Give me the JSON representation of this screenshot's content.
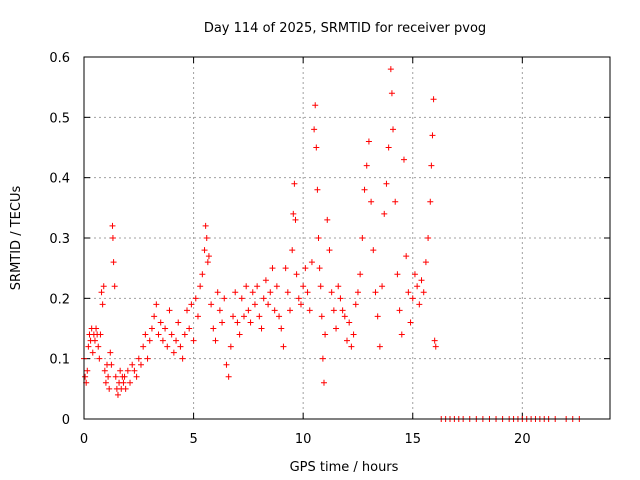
{
  "chart_data": {
    "type": "scatter",
    "title": "Day 114 of 2025, SRMTID for receiver pvog",
    "xlabel": "GPS time / hours",
    "ylabel": "SRMTID / TECUs",
    "xlim": [
      0,
      24
    ],
    "ylim": [
      0,
      0.6
    ],
    "xticks": [
      0,
      5,
      10,
      15,
      20
    ],
    "yticks": [
      0,
      0.1,
      0.2,
      0.3,
      0.4,
      0.5,
      0.6
    ],
    "xtick_labels": [
      "0",
      "5",
      "10",
      "15",
      "20"
    ],
    "ytick_labels": [
      "0",
      "0.1",
      "0.2",
      "0.3",
      "0.4",
      "0.5",
      "0.6"
    ],
    "grid": true,
    "marker": "+",
    "color": "#ff0000",
    "series": [
      {
        "name": "SRMTID",
        "points": [
          [
            0.0,
            0.1
          ],
          [
            0.05,
            0.07
          ],
          [
            0.1,
            0.06
          ],
          [
            0.15,
            0.08
          ],
          [
            0.2,
            0.12
          ],
          [
            0.25,
            0.14
          ],
          [
            0.3,
            0.13
          ],
          [
            0.35,
            0.15
          ],
          [
            0.4,
            0.11
          ],
          [
            0.45,
            0.14
          ],
          [
            0.5,
            0.13
          ],
          [
            0.55,
            0.15
          ],
          [
            0.6,
            0.14
          ],
          [
            0.65,
            0.12
          ],
          [
            0.7,
            0.1
          ],
          [
            0.75,
            0.14
          ],
          [
            0.8,
            0.21
          ],
          [
            0.85,
            0.19
          ],
          [
            0.9,
            0.22
          ],
          [
            0.95,
            0.08
          ],
          [
            1.0,
            0.06
          ],
          [
            1.05,
            0.09
          ],
          [
            1.1,
            0.07
          ],
          [
            1.15,
            0.05
          ],
          [
            1.2,
            0.11
          ],
          [
            1.25,
            0.09
          ],
          [
            1.3,
            0.32
          ],
          [
            1.32,
            0.3
          ],
          [
            1.35,
            0.26
          ],
          [
            1.4,
            0.22
          ],
          [
            1.45,
            0.07
          ],
          [
            1.5,
            0.05
          ],
          [
            1.55,
            0.04
          ],
          [
            1.6,
            0.06
          ],
          [
            1.65,
            0.08
          ],
          [
            1.7,
            0.05
          ],
          [
            1.75,
            0.07
          ],
          [
            1.8,
            0.06
          ],
          [
            1.85,
            0.07
          ],
          [
            1.9,
            0.05
          ],
          [
            2.0,
            0.08
          ],
          [
            2.1,
            0.06
          ],
          [
            2.2,
            0.09
          ],
          [
            2.3,
            0.08
          ],
          [
            2.4,
            0.07
          ],
          [
            2.5,
            0.1
          ],
          [
            2.6,
            0.09
          ],
          [
            2.7,
            0.12
          ],
          [
            2.8,
            0.14
          ],
          [
            2.9,
            0.1
          ],
          [
            3.0,
            0.13
          ],
          [
            3.1,
            0.15
          ],
          [
            3.2,
            0.17
          ],
          [
            3.3,
            0.19
          ],
          [
            3.4,
            0.14
          ],
          [
            3.5,
            0.16
          ],
          [
            3.6,
            0.13
          ],
          [
            3.7,
            0.15
          ],
          [
            3.8,
            0.12
          ],
          [
            3.9,
            0.18
          ],
          [
            4.0,
            0.14
          ],
          [
            4.1,
            0.11
          ],
          [
            4.2,
            0.13
          ],
          [
            4.3,
            0.16
          ],
          [
            4.4,
            0.12
          ],
          [
            4.5,
            0.1
          ],
          [
            4.6,
            0.14
          ],
          [
            4.7,
            0.18
          ],
          [
            4.8,
            0.15
          ],
          [
            4.9,
            0.19
          ],
          [
            5.0,
            0.13
          ],
          [
            5.1,
            0.2
          ],
          [
            5.2,
            0.17
          ],
          [
            5.3,
            0.22
          ],
          [
            5.4,
            0.24
          ],
          [
            5.5,
            0.28
          ],
          [
            5.55,
            0.32
          ],
          [
            5.6,
            0.3
          ],
          [
            5.65,
            0.26
          ],
          [
            5.7,
            0.27
          ],
          [
            5.8,
            0.19
          ],
          [
            5.9,
            0.15
          ],
          [
            6.0,
            0.13
          ],
          [
            6.1,
            0.21
          ],
          [
            6.2,
            0.18
          ],
          [
            6.3,
            0.16
          ],
          [
            6.4,
            0.2
          ],
          [
            6.5,
            0.09
          ],
          [
            6.6,
            0.07
          ],
          [
            6.7,
            0.12
          ],
          [
            6.8,
            0.17
          ],
          [
            6.9,
            0.21
          ],
          [
            7.0,
            0.16
          ],
          [
            7.1,
            0.14
          ],
          [
            7.2,
            0.2
          ],
          [
            7.3,
            0.17
          ],
          [
            7.4,
            0.22
          ],
          [
            7.5,
            0.18
          ],
          [
            7.6,
            0.16
          ],
          [
            7.7,
            0.21
          ],
          [
            7.8,
            0.19
          ],
          [
            7.9,
            0.22
          ],
          [
            8.0,
            0.17
          ],
          [
            8.1,
            0.15
          ],
          [
            8.2,
            0.2
          ],
          [
            8.3,
            0.23
          ],
          [
            8.4,
            0.19
          ],
          [
            8.5,
            0.21
          ],
          [
            8.6,
            0.25
          ],
          [
            8.7,
            0.18
          ],
          [
            8.8,
            0.22
          ],
          [
            8.9,
            0.17
          ],
          [
            9.0,
            0.15
          ],
          [
            9.1,
            0.12
          ],
          [
            9.2,
            0.25
          ],
          [
            9.3,
            0.21
          ],
          [
            9.4,
            0.18
          ],
          [
            9.5,
            0.28
          ],
          [
            9.55,
            0.34
          ],
          [
            9.6,
            0.39
          ],
          [
            9.65,
            0.33
          ],
          [
            9.7,
            0.24
          ],
          [
            9.8,
            0.2
          ],
          [
            9.9,
            0.19
          ],
          [
            10.0,
            0.22
          ],
          [
            10.1,
            0.25
          ],
          [
            10.2,
            0.21
          ],
          [
            10.3,
            0.18
          ],
          [
            10.4,
            0.26
          ],
          [
            10.5,
            0.48
          ],
          [
            10.55,
            0.52
          ],
          [
            10.6,
            0.45
          ],
          [
            10.65,
            0.38
          ],
          [
            10.7,
            0.3
          ],
          [
            10.75,
            0.25
          ],
          [
            10.8,
            0.22
          ],
          [
            10.85,
            0.17
          ],
          [
            10.9,
            0.1
          ],
          [
            10.95,
            0.06
          ],
          [
            11.0,
            0.14
          ],
          [
            11.1,
            0.33
          ],
          [
            11.2,
            0.28
          ],
          [
            11.3,
            0.21
          ],
          [
            11.4,
            0.18
          ],
          [
            11.5,
            0.15
          ],
          [
            11.6,
            0.22
          ],
          [
            11.7,
            0.2
          ],
          [
            11.8,
            0.18
          ],
          [
            11.9,
            0.17
          ],
          [
            12.0,
            0.13
          ],
          [
            12.1,
            0.16
          ],
          [
            12.2,
            0.12
          ],
          [
            12.3,
            0.14
          ],
          [
            12.4,
            0.19
          ],
          [
            12.5,
            0.21
          ],
          [
            12.6,
            0.24
          ],
          [
            12.7,
            0.3
          ],
          [
            12.8,
            0.38
          ],
          [
            12.9,
            0.42
          ],
          [
            13.0,
            0.46
          ],
          [
            13.1,
            0.36
          ],
          [
            13.2,
            0.28
          ],
          [
            13.3,
            0.21
          ],
          [
            13.4,
            0.17
          ],
          [
            13.5,
            0.12
          ],
          [
            13.6,
            0.22
          ],
          [
            13.7,
            0.34
          ],
          [
            13.8,
            0.39
          ],
          [
            13.9,
            0.45
          ],
          [
            14.0,
            0.58
          ],
          [
            14.05,
            0.54
          ],
          [
            14.1,
            0.48
          ],
          [
            14.2,
            0.36
          ],
          [
            14.3,
            0.24
          ],
          [
            14.4,
            0.18
          ],
          [
            14.5,
            0.14
          ],
          [
            14.6,
            0.43
          ],
          [
            14.7,
            0.27
          ],
          [
            14.8,
            0.21
          ],
          [
            14.9,
            0.16
          ],
          [
            15.0,
            0.2
          ],
          [
            15.1,
            0.24
          ],
          [
            15.2,
            0.22
          ],
          [
            15.3,
            0.19
          ],
          [
            15.4,
            0.23
          ],
          [
            15.5,
            0.21
          ],
          [
            15.6,
            0.26
          ],
          [
            15.7,
            0.3
          ],
          [
            15.8,
            0.36
          ],
          [
            15.85,
            0.42
          ],
          [
            15.9,
            0.47
          ],
          [
            15.95,
            0.53
          ],
          [
            16.0,
            0.13
          ],
          [
            16.05,
            0.12
          ],
          [
            16.3,
            0
          ],
          [
            16.5,
            0
          ],
          [
            16.7,
            0
          ],
          [
            16.9,
            0
          ],
          [
            17.1,
            0
          ],
          [
            17.3,
            0
          ],
          [
            17.6,
            0
          ],
          [
            17.9,
            0
          ],
          [
            18.2,
            0
          ],
          [
            18.5,
            0
          ],
          [
            18.8,
            0
          ],
          [
            19.1,
            0
          ],
          [
            19.4,
            0
          ],
          [
            19.6,
            0
          ],
          [
            19.8,
            0
          ],
          [
            20.0,
            0
          ],
          [
            20.2,
            0
          ],
          [
            20.4,
            0
          ],
          [
            20.6,
            0
          ],
          [
            20.8,
            0
          ],
          [
            21.0,
            0
          ],
          [
            21.2,
            0
          ],
          [
            21.5,
            0
          ],
          [
            22.0,
            0
          ],
          [
            22.3,
            0
          ],
          [
            22.6,
            0
          ]
        ]
      }
    ]
  }
}
